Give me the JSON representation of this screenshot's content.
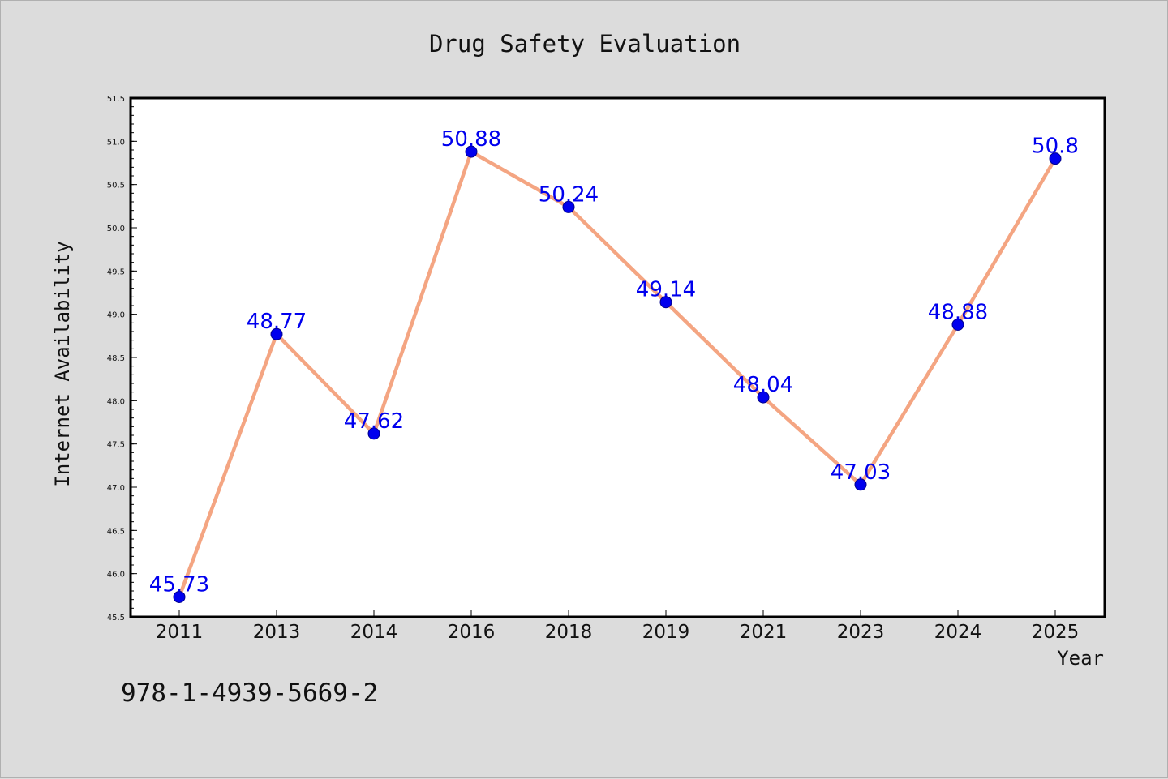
{
  "chart_data": {
    "type": "line",
    "title": "Drug Safety Evaluation",
    "xlabel": "Year",
    "ylabel": "Internet Availability",
    "categories": [
      "2011",
      "2013",
      "2014",
      "2016",
      "2018",
      "2019",
      "2021",
      "2023",
      "2024",
      "2025"
    ],
    "series": [
      {
        "values": [
          45.73,
          48.77,
          47.62,
          50.88,
          50.24,
          49.14,
          48.04,
          47.03,
          48.88,
          50.8
        ],
        "labels": [
          "45.73",
          "48.77",
          "47.62",
          "50.88",
          "50.24",
          "49.14",
          "48.04",
          "47.03",
          "48.88",
          "50.8"
        ]
      }
    ],
    "ylim": [
      45.5,
      51.5
    ],
    "yticks": [
      "45.5",
      "46.0",
      "46.5",
      "47.0",
      "47.5",
      "48.0",
      "48.5",
      "49.0",
      "49.5",
      "50.0",
      "50.5",
      "51.0",
      "51.5"
    ],
    "grid": false,
    "legend": "none",
    "line_color": "#f4a582",
    "marker_color": "#0000ee",
    "label_color": "#0000ee"
  },
  "footer": {
    "isbn": "978-1-4939-5669-2"
  }
}
